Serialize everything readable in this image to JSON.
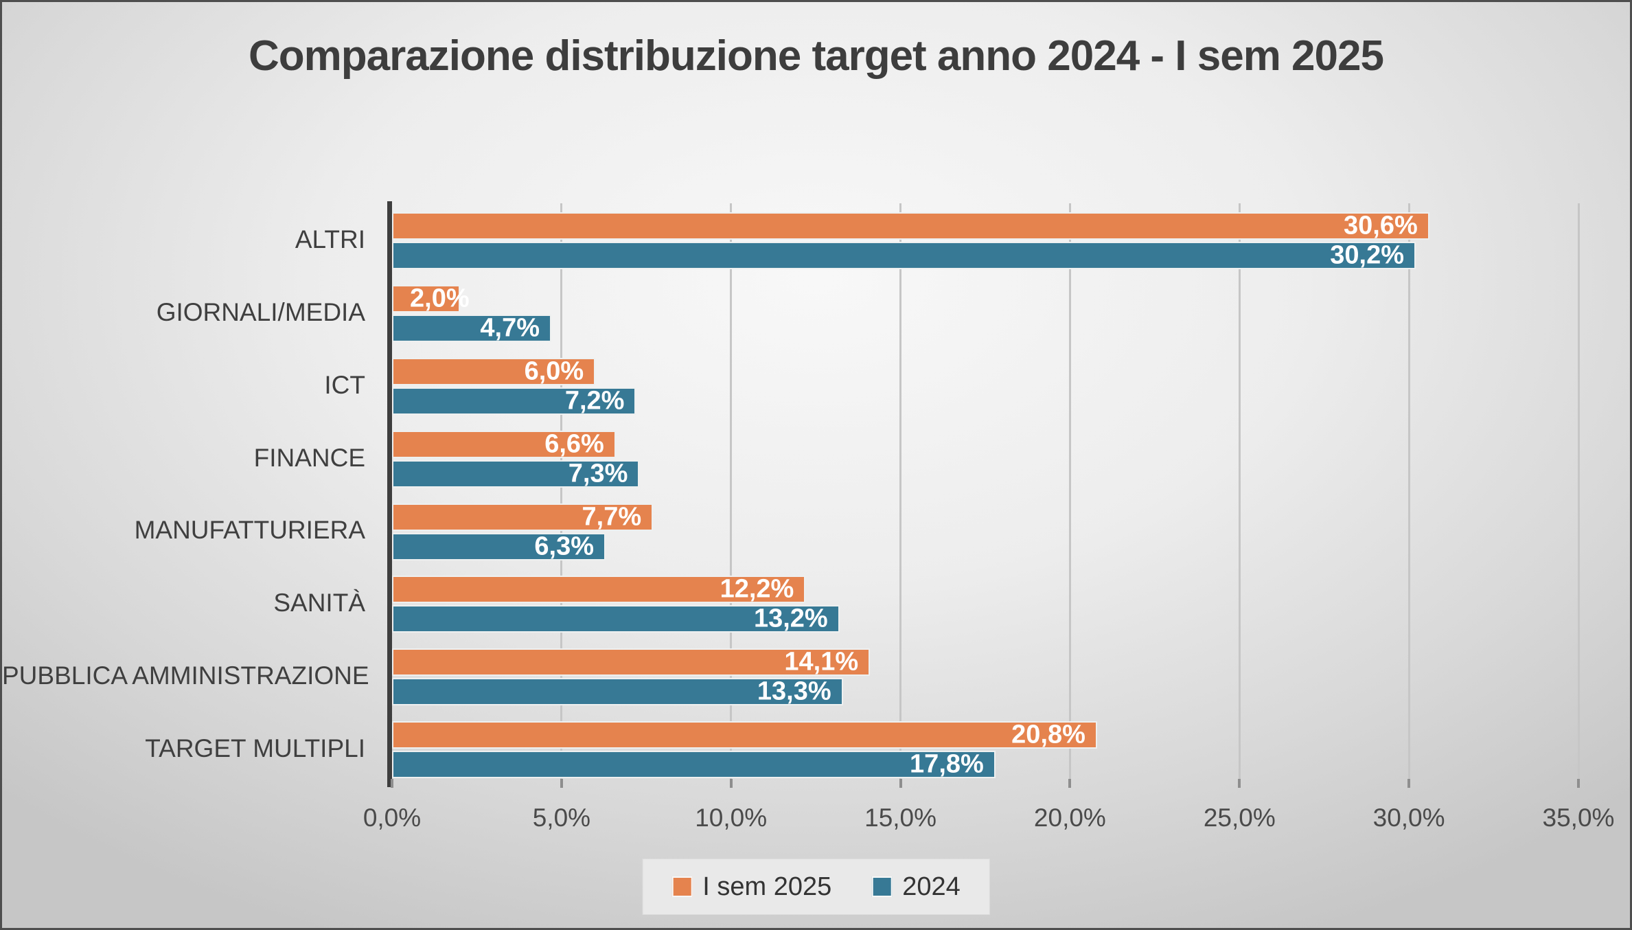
{
  "title": "Comparazione distribuzione target anno 2024 - I sem 2025",
  "colors": {
    "series_1": "#e5834e",
    "series_2": "#377995",
    "title_text": "#3d3d3d",
    "axis_line": "#3e3e3e",
    "gridline": "#c6c6c6",
    "bar_value_text": "#ffffff",
    "background_light": "#f8f8f8",
    "background_dark": "#c6c6c6"
  },
  "chart_data": {
    "type": "bar",
    "orientation": "horizontal",
    "title": "Comparazione distribuzione target anno 2024 - I sem 2025",
    "categories": [
      "ALTRI",
      "GIORNALI/MEDIA",
      "ICT",
      "FINANCE",
      "MANUFATTURIERA",
      "SANITÀ",
      "PUBBLICA AMMINISTRAZIONE",
      "TARGET MULTIPLI"
    ],
    "series": [
      {
        "name": "I sem 2025",
        "color": "#e5834e",
        "values": [
          30.6,
          2.0,
          6.0,
          6.6,
          7.7,
          12.2,
          14.1,
          20.8
        ],
        "labels": [
          "30,6%",
          "2,0%",
          "6,0%",
          "6,6%",
          "7,7%",
          "12,2%",
          "14,1%",
          "20,8%"
        ]
      },
      {
        "name": "2024",
        "color": "#377995",
        "values": [
          30.2,
          4.7,
          7.2,
          7.3,
          6.3,
          13.2,
          13.3,
          17.8
        ],
        "labels": [
          "30,2%",
          "4,7%",
          "7,2%",
          "7,3%",
          "6,3%",
          "13,2%",
          "13,3%",
          "17,8%"
        ]
      }
    ],
    "xlabel": "",
    "ylabel": "",
    "xlim": [
      0,
      35
    ],
    "x_ticks": [
      "0,0%",
      "5,0%",
      "10,0%",
      "15,0%",
      "20,0%",
      "25,0%",
      "30,0%",
      "35,0%"
    ],
    "grid": true,
    "legend_position": "bottom"
  }
}
